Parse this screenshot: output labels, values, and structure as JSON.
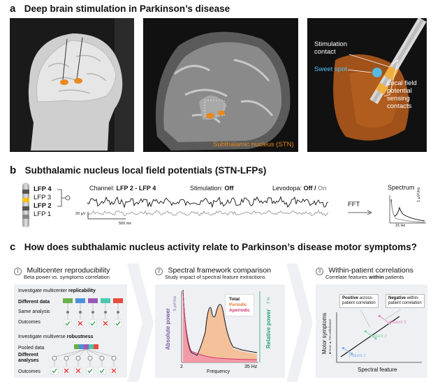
{
  "section_a": {
    "letter": "a",
    "title": "Deep brain stimulation in Parkinson’s disease",
    "mri_label": "Subthalamic nucleus (STN)",
    "electrode_labels": {
      "stimulation_contact": "Stimulation\ncontact",
      "sweet_spot": "Sweet spot",
      "lfp_contacts": "Local field\npotential\nsensing\ncontacts"
    },
    "colors": {
      "sweet_spot": "#4fc3f7",
      "stn": "#e8891c",
      "dark_bg": "#111111"
    }
  },
  "section_b": {
    "letter": "b",
    "title": "Subthalamic nucleus local field potentials (STN-LFPs)",
    "lead_contacts": [
      "LFP 4",
      "LFP 3",
      "LFP 2",
      "LFP 1"
    ],
    "channel_prefix": "Channel:",
    "channel_value": "LFP 2 - LFP 4",
    "stim_prefix": "Stimulation:",
    "stim_value": "Off",
    "levodopa_prefix": "Levodopa:",
    "levodopa_off": "Off",
    "levodopa_sep": "/",
    "levodopa_on": "On",
    "scale_uv": "20 µV",
    "scale_ms": "500 ms",
    "fft": "FFT",
    "spectrum_title": "Spectrum",
    "spectrum_ylabel": "1 µV²/Hz",
    "spectrum_xlabel": "15 Hz"
  },
  "section_c": {
    "letter": "c",
    "title": "How does subthalamic nucleus activity relate to Parkinson’s disease motor symptoms?",
    "col1": {
      "num": "1",
      "heading": "Multicenter reproducibility",
      "sub": "Beta power vs. symptoms correlation",
      "box1_title_a": "Investigate multicenter ",
      "box1_title_b": "replicability",
      "different_data": "Different data",
      "same_analysis": "Same analysis",
      "outcomes": "Outcomes",
      "box2_title_a": "Investigate multiverse ",
      "box2_title_b": "robustness",
      "pooled_data": "Pooled data",
      "different_analyses": "Different\nanalyses",
      "outcomes2": "Outcomes",
      "data_colors": [
        "#6ab04c",
        "#4a90d9",
        "#9b59b6",
        "#48c9b0",
        "#e74c3c"
      ],
      "outcome_row1": [
        "check",
        "cross",
        "check",
        "cross",
        "check"
      ],
      "outcome_row2": [
        "check",
        "cross",
        "cross",
        "check",
        "check",
        "cross"
      ]
    },
    "col2": {
      "num": "2",
      "heading": "Spectral framework comparison",
      "sub": "Study impact of spectral feature extractions",
      "legend": [
        "Total",
        "Periodic",
        "Aperiodic"
      ],
      "ylabel_left": "Absolute power",
      "ylabel_left_unit": "5 µV²/Hz",
      "ylabel_right": "Relative power",
      "ylabel_right_unit": "7 %",
      "xlabel": "Frequency",
      "x_start": "2",
      "x_end": "35 Hz"
    },
    "col3": {
      "num": "3",
      "heading": "Within-patient correlations",
      "sub_a": "Correlate features ",
      "sub_b": "within",
      "sub_c": " patients",
      "pos_a": "Positive",
      "pos_b": " across-\npatient correlation",
      "neg_a": "Negative",
      "neg_b": " within-\npatient correlation",
      "ylabel": "Motor symptoms",
      "ylabel_sub": "■ Now  ▲ Pre-withdrawal",
      "xlabel": "Spectral feature",
      "patients": [
        "Patient 1",
        "Patient 2",
        "Patient 3"
      ],
      "patient_colors": [
        "#7fb3e6",
        "#7fd4a6",
        "#e88ac2"
      ]
    }
  }
}
